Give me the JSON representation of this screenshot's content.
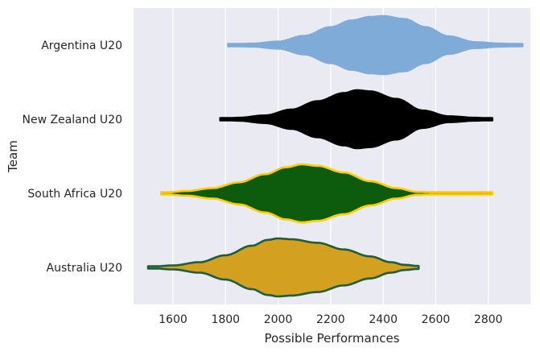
{
  "chart_data": {
    "type": "violin",
    "orientation": "horizontal",
    "xlabel": "Possible Performances",
    "ylabel": "Team",
    "xlim": [
      1450,
      2960
    ],
    "xticks": [
      1600,
      1800,
      2000,
      2200,
      2400,
      2600,
      2800
    ],
    "grid": true,
    "background": "#EAEAF2",
    "categories": [
      "Argentina U20",
      "New Zealand U20",
      "South Africa U20",
      "Australia U20"
    ],
    "series": [
      {
        "name": "Argentina U20",
        "fill": "#7FABD9",
        "stroke": "#7FABD9",
        "range": [
          1810,
          2930
        ],
        "profile": [
          [
            1810,
            0.02
          ],
          [
            1900,
            0.05
          ],
          [
            2000,
            0.12
          ],
          [
            2100,
            0.32
          ],
          [
            2200,
            0.62
          ],
          [
            2280,
            0.85
          ],
          [
            2350,
            0.97
          ],
          [
            2400,
            1.0
          ],
          [
            2480,
            0.9
          ],
          [
            2560,
            0.62
          ],
          [
            2650,
            0.3
          ],
          [
            2750,
            0.1
          ],
          [
            2850,
            0.05
          ],
          [
            2930,
            0.02
          ]
        ]
      },
      {
        "name": "New Zealand U20",
        "fill": "#000000",
        "stroke": "#000000",
        "range": [
          1780,
          2815
        ],
        "profile": [
          [
            1780,
            0.02
          ],
          [
            1850,
            0.05
          ],
          [
            1950,
            0.13
          ],
          [
            2050,
            0.33
          ],
          [
            2150,
            0.62
          ],
          [
            2250,
            0.9
          ],
          [
            2300,
            1.0
          ],
          [
            2350,
            0.96
          ],
          [
            2450,
            0.7
          ],
          [
            2550,
            0.3
          ],
          [
            2650,
            0.1
          ],
          [
            2750,
            0.05
          ],
          [
            2815,
            0.02
          ]
        ]
      },
      {
        "name": "South Africa U20",
        "fill": "#0D5C0D",
        "stroke": "#FFCC00",
        "range": [
          1555,
          2815
        ],
        "profile": [
          [
            1555,
            0.02
          ],
          [
            1650,
            0.08
          ],
          [
            1750,
            0.18
          ],
          [
            1850,
            0.38
          ],
          [
            1950,
            0.66
          ],
          [
            2030,
            0.9
          ],
          [
            2090,
            1.0
          ],
          [
            2150,
            0.95
          ],
          [
            2250,
            0.72
          ],
          [
            2350,
            0.42
          ],
          [
            2450,
            0.18
          ],
          [
            2530,
            0.05
          ],
          [
            2650,
            0.02
          ],
          [
            2815,
            0.02
          ]
        ]
      },
      {
        "name": "Australia U20",
        "fill": "#D4A01F",
        "stroke": "#1E5E3A",
        "range": [
          1505,
          2535
        ],
        "profile": [
          [
            1505,
            0.02
          ],
          [
            1600,
            0.07
          ],
          [
            1700,
            0.18
          ],
          [
            1800,
            0.42
          ],
          [
            1900,
            0.75
          ],
          [
            1960,
            0.95
          ],
          [
            2000,
            1.0
          ],
          [
            2050,
            0.97
          ],
          [
            2150,
            0.85
          ],
          [
            2250,
            0.62
          ],
          [
            2350,
            0.38
          ],
          [
            2430,
            0.18
          ],
          [
            2480,
            0.09
          ],
          [
            2535,
            0.05
          ]
        ]
      }
    ]
  }
}
